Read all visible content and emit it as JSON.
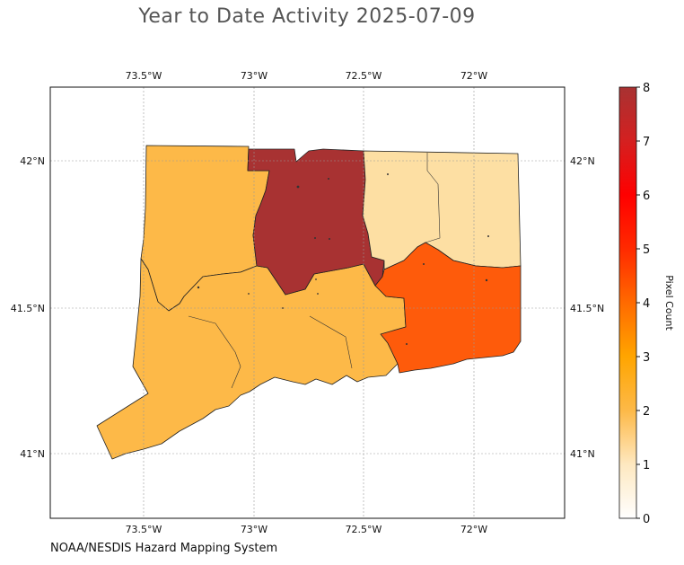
{
  "title": "Year to Date Activity 2025-07-09",
  "credit": "NOAA/NESDIS Hazard Mapping System",
  "map": {
    "lon_ticks": [
      {
        "value": -73.5,
        "label": "73.5°W"
      },
      {
        "value": -73.0,
        "label": "73°W"
      },
      {
        "value": -72.5,
        "label": "72.5°W"
      },
      {
        "value": -72.0,
        "label": "72°W"
      }
    ],
    "lat_ticks": [
      {
        "value": 42.0,
        "label": "42°N"
      },
      {
        "value": 41.5,
        "label": "41.5°N"
      },
      {
        "value": 41.0,
        "label": "41°N"
      }
    ],
    "regions": [
      {
        "name": "western",
        "value": 2,
        "color": "#fdb948"
      },
      {
        "name": "north-central",
        "value": 8,
        "color": "#a83232"
      },
      {
        "name": "south-central",
        "value": 2,
        "color": "#fdb948"
      },
      {
        "name": "northeastern",
        "value": 1,
        "color": "#fddfa3"
      },
      {
        "name": "southeastern",
        "value": 4,
        "color": "#fe5b0b"
      }
    ]
  },
  "colorbar": {
    "label": "Pixel Count",
    "min": 0,
    "max": 8,
    "ticks": [
      "0",
      "1",
      "2",
      "3",
      "4",
      "5",
      "6",
      "7",
      "8"
    ],
    "stops": [
      "#ffffff",
      "#fee8c0",
      "#fdb948",
      "#ffa500",
      "#ff6a00",
      "#ff2a00",
      "#ff0000",
      "#d42020",
      "#a83232"
    ]
  }
}
